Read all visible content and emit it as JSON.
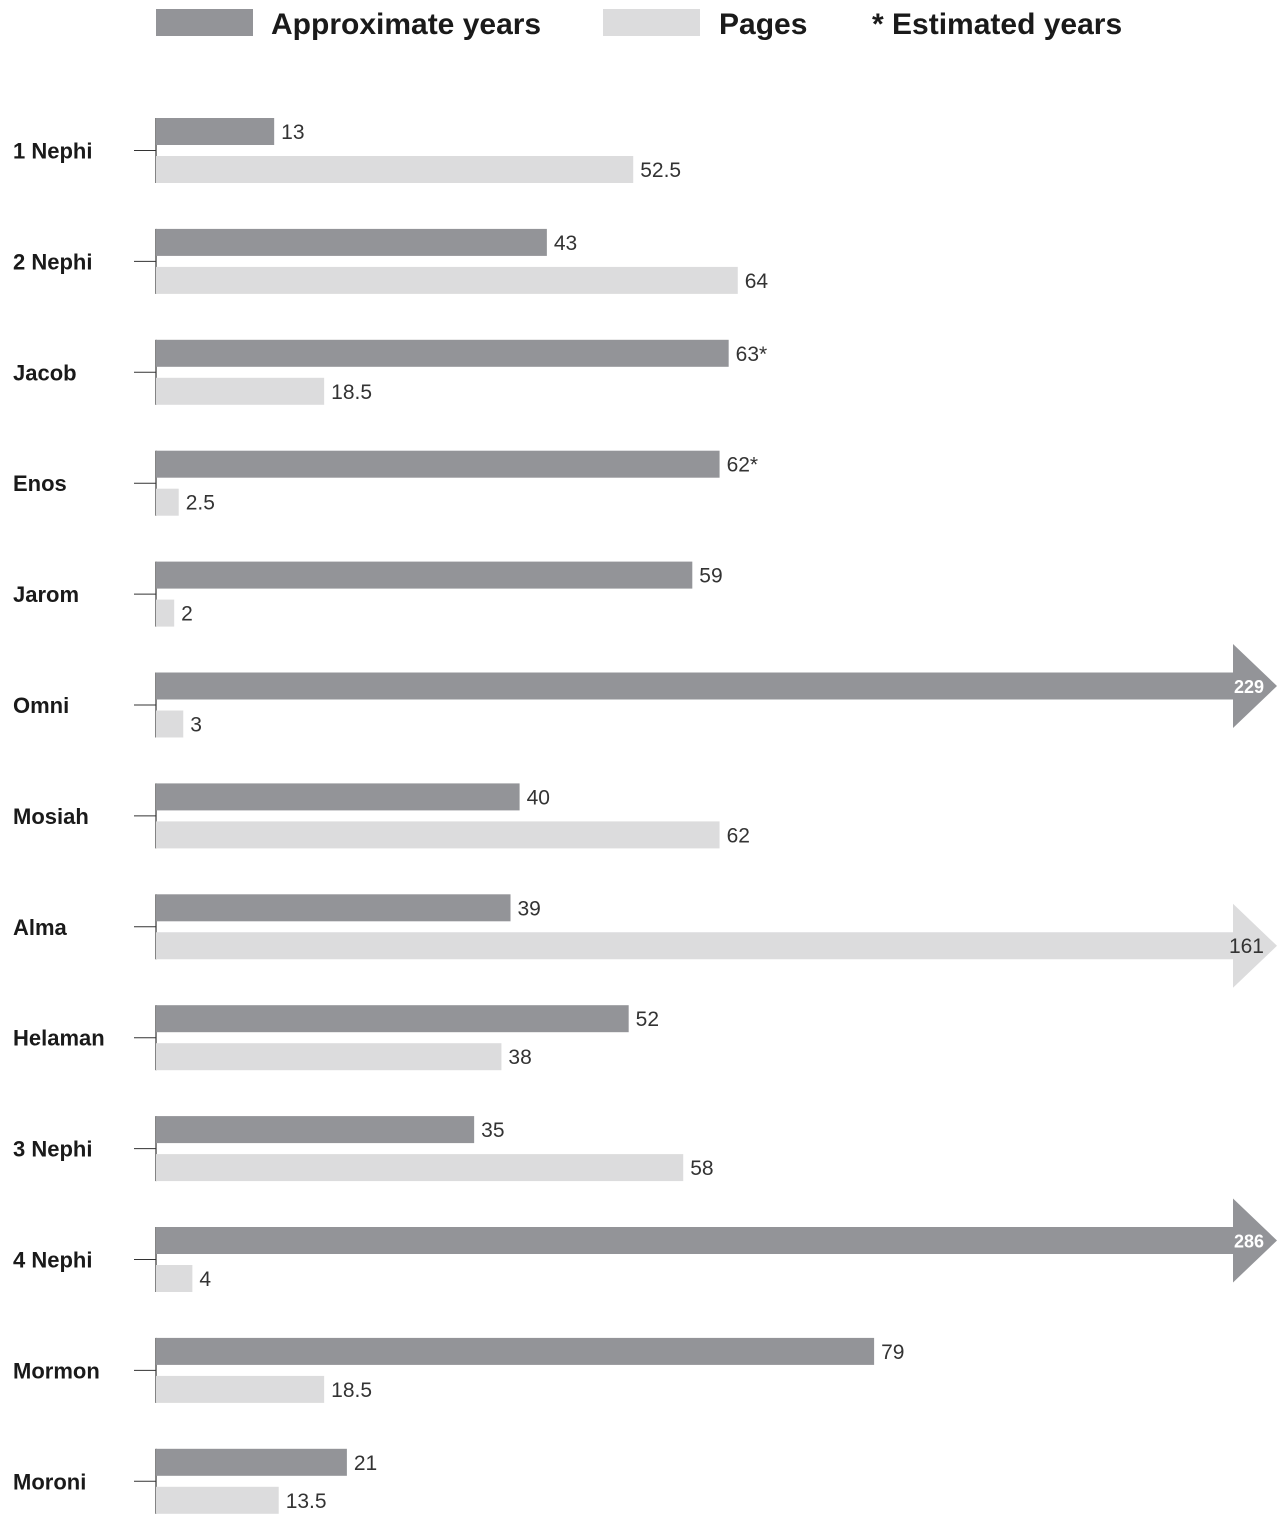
{
  "legend": {
    "years_label": "Approximate years",
    "pages_label": "Pages",
    "estimated_note": "* Estimated years"
  },
  "colors": {
    "years": "#939498",
    "pages": "#dcdcdd",
    "axis": "#333333"
  },
  "chart_data": {
    "type": "bar",
    "orientation": "horizontal",
    "categories": [
      "1 Nephi",
      "2 Nephi",
      "Jacob",
      "Enos",
      "Jarom",
      "Omni",
      "Mosiah",
      "Alma",
      "Helaman",
      "3 Nephi",
      "4 Nephi",
      "Mormon",
      "Moroni"
    ],
    "series": [
      {
        "name": "Approximate years",
        "values": [
          13,
          43,
          63,
          62,
          59,
          229,
          40,
          39,
          52,
          35,
          286,
          79,
          21
        ],
        "labels": [
          "13",
          "43",
          "63*",
          "62*",
          "59",
          "229",
          "40",
          "39",
          "52",
          "35",
          "286",
          "79",
          "21"
        ],
        "truncated": [
          false,
          false,
          false,
          false,
          false,
          true,
          false,
          false,
          false,
          false,
          true,
          false,
          false
        ]
      },
      {
        "name": "Pages",
        "values": [
          52.5,
          64,
          18.5,
          2.5,
          2,
          3,
          62,
          161,
          38,
          58,
          4,
          18.5,
          13.5
        ],
        "labels": [
          "52.5",
          "64",
          "18.5",
          "2.5",
          "2",
          "3",
          "62",
          "161",
          "38",
          "58",
          "4",
          "18.5",
          "13.5"
        ],
        "truncated": [
          false,
          false,
          false,
          false,
          false,
          false,
          false,
          true,
          false,
          false,
          false,
          false,
          false
        ]
      }
    ],
    "legend_position": "top",
    "grid": false
  }
}
